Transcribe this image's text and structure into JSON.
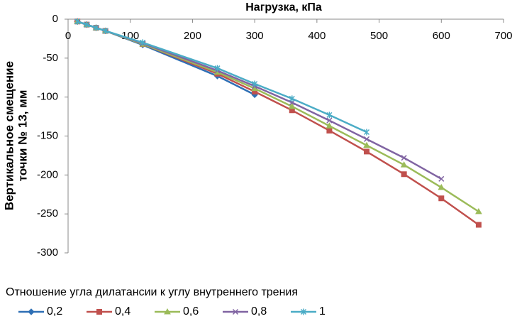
{
  "chart_data": {
    "type": "line",
    "title": "Нагрузка, кПа",
    "y_label": [
      "Вертикальное смещение",
      "точки № 13, мм"
    ],
    "legend_title": "Отношение угла дилатансии к углу внутреннего трения",
    "x": [
      15,
      30,
      45,
      60,
      120,
      240,
      300,
      360,
      420,
      480,
      540,
      600,
      660
    ],
    "series": [
      {
        "name": "0,2",
        "color": "#2e6fb5",
        "marker": "diamond",
        "values": [
          -3,
          -7,
          -11,
          -15,
          -33,
          -73,
          -97,
          null,
          null,
          null,
          null,
          null,
          null
        ]
      },
      {
        "name": "0,4",
        "color": "#c0504d",
        "marker": "square",
        "values": [
          -3,
          -7,
          -11,
          -15,
          -32,
          -70,
          -93,
          -117,
          -143,
          -170,
          -199,
          -230,
          -264
        ]
      },
      {
        "name": "0,6",
        "color": "#9bbb59",
        "marker": "triangle",
        "values": [
          -3,
          -7,
          -11,
          -15,
          -32,
          -68,
          -89,
          -112,
          -137,
          -162,
          -187,
          -216,
          -247
        ]
      },
      {
        "name": "0,8",
        "color": "#8064a2",
        "marker": "x",
        "values": [
          -3,
          -7,
          -11,
          -15,
          -31,
          -66,
          -86,
          -107,
          -130,
          -154,
          -178,
          -205,
          null
        ]
      },
      {
        "name": "1",
        "color": "#4bacc6",
        "marker": "star",
        "values": [
          -3,
          -7,
          -11,
          -15,
          -30,
          -63,
          -83,
          -102,
          -123,
          -145,
          null,
          null,
          null
        ]
      }
    ],
    "xlim": [
      0,
      700
    ],
    "xticks": [
      0,
      100,
      200,
      300,
      400,
      500,
      600,
      700
    ],
    "ylim": [
      -300,
      0
    ],
    "yticks": [
      0,
      -50,
      -100,
      -150,
      -200,
      -250,
      -300
    ],
    "legend": "bottom"
  }
}
